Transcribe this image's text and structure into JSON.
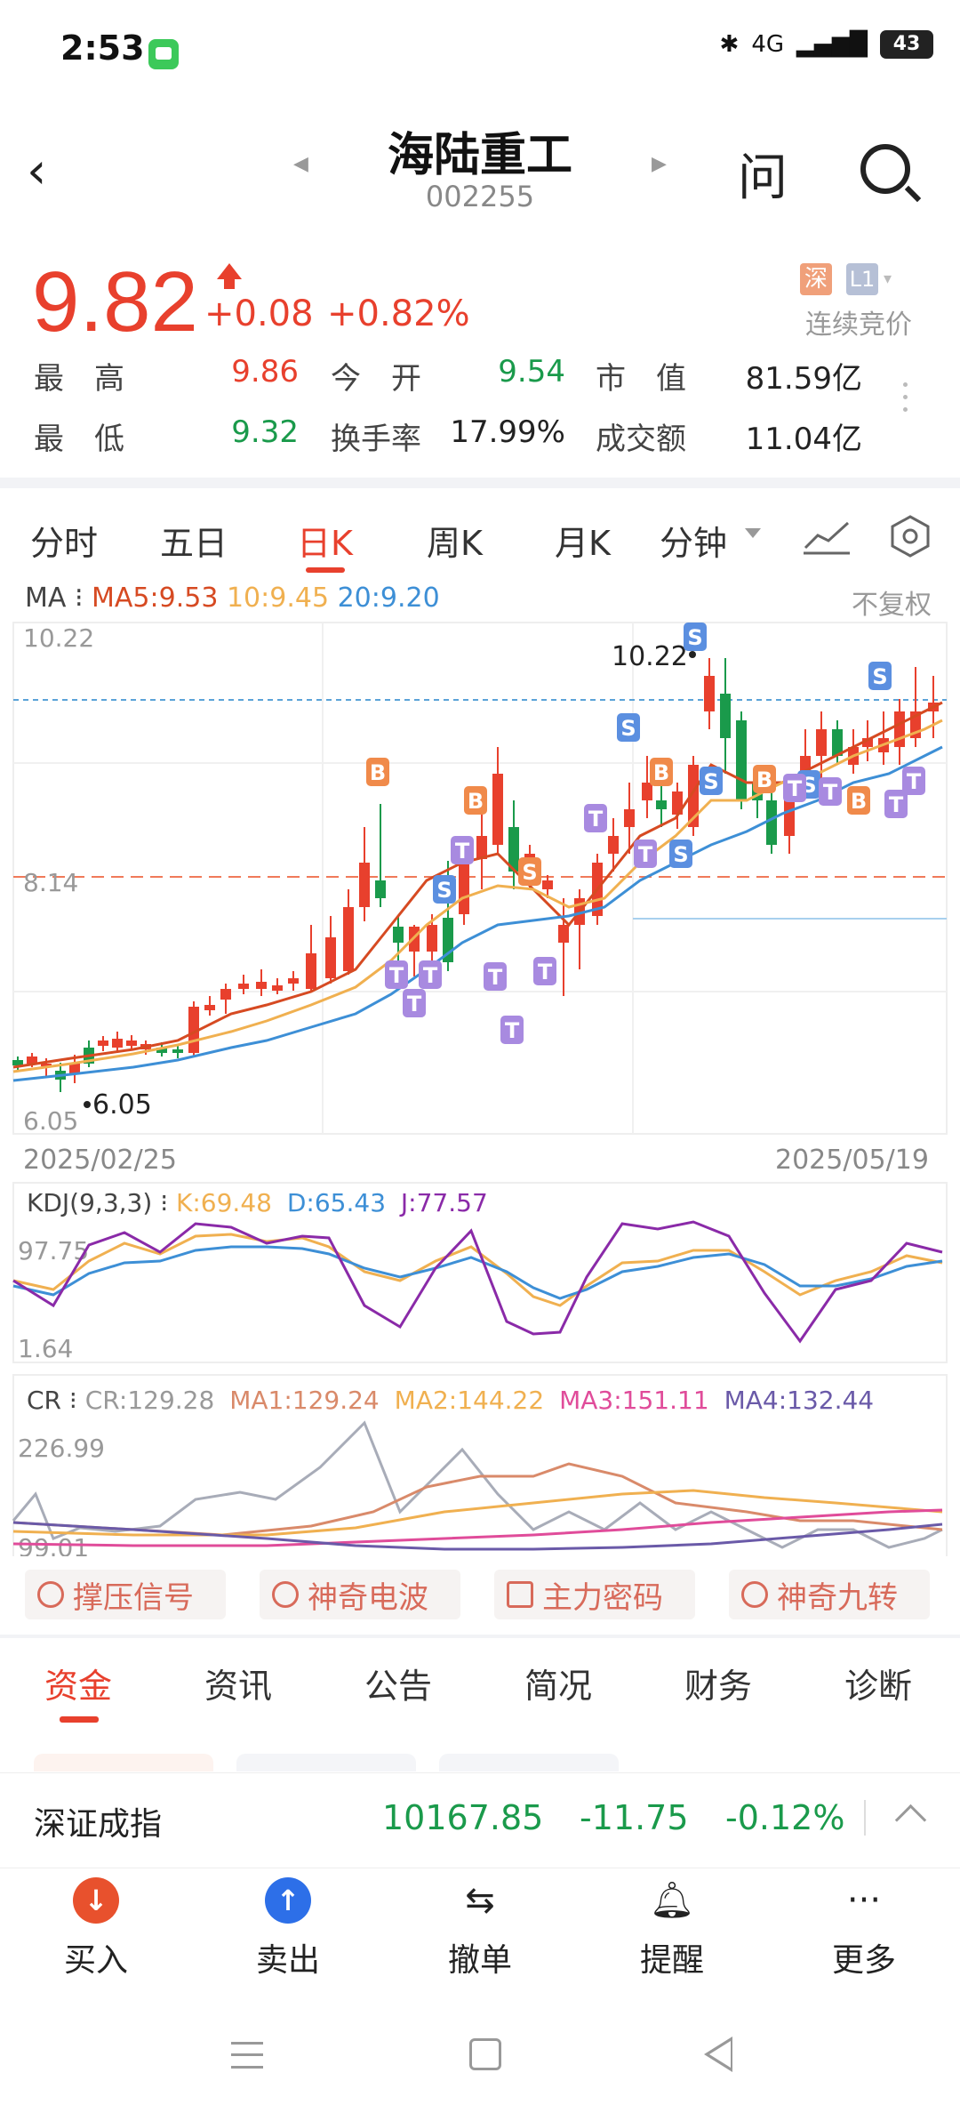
{
  "status_bar": {
    "time": "2:53",
    "network": "4G",
    "battery": "43"
  },
  "header": {
    "title": "海陆重工",
    "code": "002255",
    "ask_icon": "问"
  },
  "quote": {
    "price": "9.82",
    "change": "+0.08",
    "change_pct": "+0.82%",
    "market_tag": "深",
    "level_tag": "L1",
    "auction": "连续竞价",
    "rows": [
      [
        {
          "label": "最　高",
          "value": "9.86",
          "color": "red"
        },
        {
          "label": "今　开",
          "value": "9.54",
          "color": "green"
        },
        {
          "label": "市　值",
          "value": "81.59亿",
          "color": "dark"
        }
      ],
      [
        {
          "label": "最　低",
          "value": "9.32",
          "color": "green"
        },
        {
          "label": "换手率",
          "value": "17.99%",
          "color": "dark"
        },
        {
          "label": "成交额",
          "value": "11.04亿",
          "color": "dark"
        }
      ]
    ]
  },
  "chart_tabs": [
    "分时",
    "五日",
    "日K",
    "周K",
    "月K",
    "分钟"
  ],
  "active_tab": "日K",
  "ma_legend": {
    "prefix": "MA",
    "ma5": "MA5:9.53",
    "ma10": "10:9.45",
    "ma20": "20:9.20",
    "adjust": "不复权"
  },
  "colors": {
    "up": "#e8402d",
    "down": "#1a9a4b",
    "ma5": "#d64a22",
    "ma10": "#f0b050",
    "ma20": "#3d8fd6"
  },
  "chart_data": [
    {
      "type": "candlestick",
      "y_axis_labels": [
        "10.22",
        "8.14",
        "6.05"
      ],
      "annotations": [
        "10.22",
        "6.05"
      ],
      "date_start": "2025/02/25",
      "date_end": "2025/05/19",
      "ylim": [
        6.05,
        10.22
      ],
      "markers": [
        "B",
        "S",
        "T"
      ]
    },
    {
      "type": "line",
      "legend_prefix": "KDJ(9,3,3)",
      "series": [
        {
          "name": "K:69.48"
        },
        {
          "name": "D:65.43"
        },
        {
          "name": "J:77.57"
        }
      ],
      "y_axis_labels": [
        "97.75",
        "1.64"
      ]
    },
    {
      "type": "line",
      "legend_prefix": "CR",
      "series": [
        {
          "name": "CR:129.28"
        },
        {
          "name": "MA1:129.24"
        },
        {
          "name": "MA2:144.22"
        },
        {
          "name": "MA3:151.11"
        },
        {
          "name": "MA4:132.44"
        }
      ],
      "y_axis_labels": [
        "226.99",
        "99.01"
      ]
    }
  ],
  "tools": [
    "撑压信号",
    "神奇电波",
    "主力密码",
    "神奇九转"
  ],
  "info_tabs": [
    "资金",
    "资讯",
    "公告",
    "简况",
    "财务",
    "诊断"
  ],
  "index_bar": {
    "name": "深证成指",
    "value": "10167.85",
    "change": "-11.75",
    "pct": "-0.12%"
  },
  "actions": [
    {
      "label": "买入",
      "icon": "buy-icon"
    },
    {
      "label": "卖出",
      "icon": "sell-icon"
    },
    {
      "label": "撤单",
      "icon": "cancel-order-icon"
    },
    {
      "label": "提醒",
      "icon": "bell-icon"
    },
    {
      "label": "更多",
      "icon": "more-icon"
    }
  ]
}
